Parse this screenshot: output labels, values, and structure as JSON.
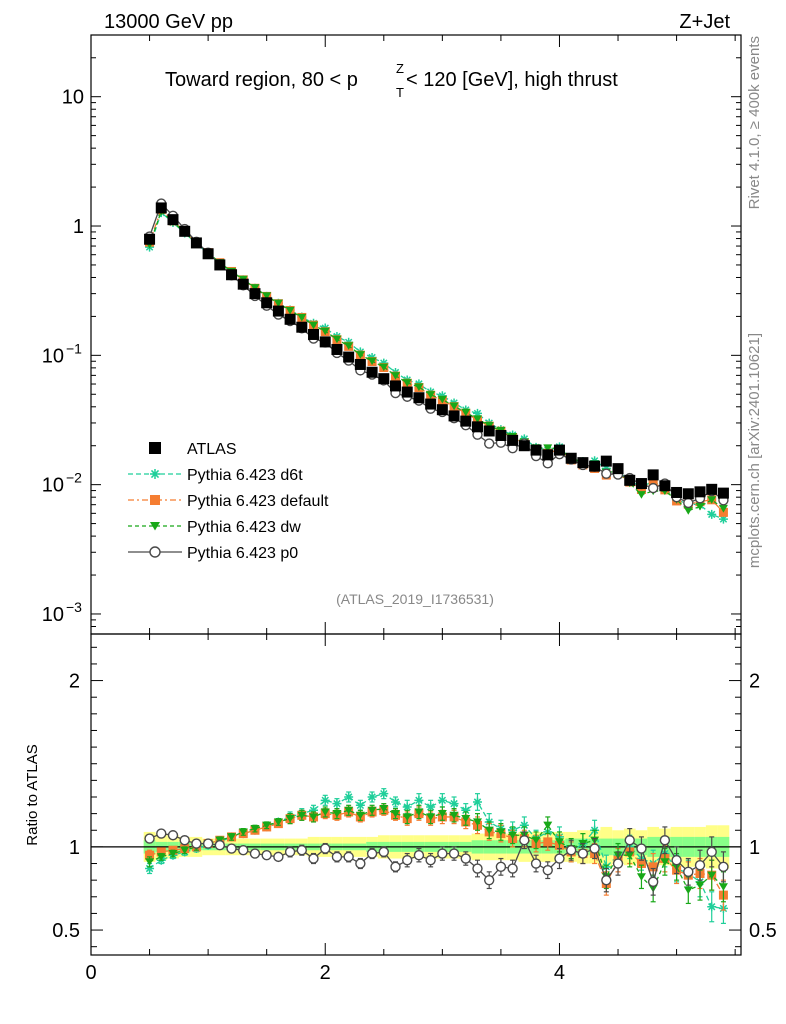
{
  "header": {
    "left": "13000 GeV pp",
    "right": "Z+Jet",
    "title_part1": "Toward region, 80 < p",
    "title_sup": "Z",
    "title_sub": "T",
    "title_part2": " < 120 [GeV], high thrust"
  },
  "side": {
    "top": "Rivet 4.1.0, ≥ 400k events",
    "bottom": "mcplots.cern.ch [arXiv:2401.10621]"
  },
  "analysis_id": "(ATLAS_2019_I1736531)",
  "ratio_ylabel": "Ratio to ATLAS",
  "colors": {
    "atlas": "#000000",
    "d6t": "#1fcf9a",
    "default": "#f57d31",
    "dw": "#18a818",
    "p0": "#4a4a4a",
    "band_yellow": "#ffff88",
    "band_green": "#88ff88"
  },
  "chart_data": {
    "type": "scatter",
    "xlim": [
      0,
      5.55
    ],
    "main": {
      "yscale": "log",
      "ylim": [
        0.0007,
        30
      ],
      "yticks": [
        {
          "value": 10,
          "base": "10",
          "exp": ""
        },
        {
          "value": 1,
          "base": "1",
          "exp": ""
        },
        {
          "value": 0.1,
          "base": "10",
          "exp": "−1"
        },
        {
          "value": 0.01,
          "base": "10",
          "exp": "−2"
        },
        {
          "value": 0.001,
          "base": "10",
          "exp": "−3"
        }
      ]
    },
    "ratio": {
      "ylim": [
        0.35,
        2.28
      ],
      "yticks": [
        0.5,
        1,
        2
      ],
      "ytick_labels": [
        "0.5",
        "1",
        "2"
      ]
    },
    "xticks": [
      0,
      2,
      4
    ],
    "xtick_labels": [
      "0",
      "2",
      "4"
    ],
    "x": [
      0.5,
      0.6,
      0.7,
      0.8,
      0.9,
      1.0,
      1.1,
      1.2,
      1.3,
      1.4,
      1.5,
      1.6,
      1.7,
      1.8,
      1.9,
      2.0,
      2.1,
      2.2,
      2.3,
      2.4,
      2.5,
      2.6,
      2.7,
      2.8,
      2.9,
      3.0,
      3.1,
      3.2,
      3.3,
      3.4,
      3.5,
      3.6,
      3.7,
      3.8,
      3.9,
      4.0,
      4.1,
      4.2,
      4.3,
      4.4,
      4.5,
      4.6,
      4.7,
      4.8,
      4.9,
      5.0,
      5.1,
      5.2,
      5.3,
      5.4
    ],
    "atlas_values": [
      0.79,
      1.38,
      1.12,
      0.91,
      0.74,
      0.61,
      0.5,
      0.42,
      0.355,
      0.3,
      0.255,
      0.22,
      0.19,
      0.165,
      0.145,
      0.127,
      0.111,
      0.097,
      0.085,
      0.074,
      0.066,
      0.058,
      0.052,
      0.047,
      0.042,
      0.038,
      0.034,
      0.031,
      0.028,
      0.026,
      0.024,
      0.022,
      0.02,
      0.0185,
      0.017,
      0.0185,
      0.016,
      0.0148,
      0.0139,
      0.0152,
      0.0133,
      0.0108,
      0.0102,
      0.0119,
      0.0098,
      0.0087,
      0.0085,
      0.0088,
      0.0092,
      0.0086
    ],
    "band_total": [
      0.09,
      0.08,
      0.07,
      0.06,
      0.06,
      0.05,
      0.05,
      0.05,
      0.05,
      0.05,
      0.05,
      0.05,
      0.05,
      0.05,
      0.06,
      0.06,
      0.06,
      0.06,
      0.06,
      0.06,
      0.07,
      0.07,
      0.07,
      0.07,
      0.07,
      0.07,
      0.07,
      0.07,
      0.08,
      0.08,
      0.08,
      0.08,
      0.09,
      0.09,
      0.09,
      0.09,
      0.09,
      0.1,
      0.1,
      0.12,
      0.1,
      0.11,
      0.1,
      0.12,
      0.11,
      0.12,
      0.12,
      0.12,
      0.13,
      0.13
    ],
    "band_stat": [
      0.04,
      0.03,
      0.03,
      0.03,
      0.02,
      0.02,
      0.02,
      0.02,
      0.02,
      0.02,
      0.02,
      0.02,
      0.02,
      0.02,
      0.02,
      0.02,
      0.02,
      0.02,
      0.02,
      0.03,
      0.03,
      0.03,
      0.03,
      0.03,
      0.03,
      0.03,
      0.03,
      0.03,
      0.04,
      0.04,
      0.04,
      0.04,
      0.04,
      0.04,
      0.04,
      0.04,
      0.05,
      0.05,
      0.05,
      0.05,
      0.05,
      0.05,
      0.05,
      0.06,
      0.06,
      0.06,
      0.06,
      0.06,
      0.06,
      0.06
    ],
    "series": [
      {
        "name": "Pythia 6.423 d6t",
        "key": "d6t",
        "marker": "star",
        "dash": "5,3",
        "ratio": [
          0.87,
          0.92,
          0.95,
          0.97,
          0.99,
          1.01,
          1.03,
          1.06,
          1.08,
          1.1,
          1.12,
          1.15,
          1.18,
          1.2,
          1.22,
          1.28,
          1.26,
          1.3,
          1.25,
          1.3,
          1.32,
          1.27,
          1.24,
          1.28,
          1.24,
          1.28,
          1.26,
          1.22,
          1.27,
          1.15,
          1.11,
          1.1,
          1.13,
          1.05,
          1.09,
          1.06,
          0.97,
          1.02,
          1.1,
          0.88,
          0.95,
          1.0,
          0.93,
          0.9,
          0.96,
          0.87,
          0.84,
          0.79,
          0.64,
          0.63
        ],
        "err": [
          0.03,
          0.02,
          0.02,
          0.02,
          0.02,
          0.02,
          0.02,
          0.02,
          0.02,
          0.02,
          0.02,
          0.02,
          0.03,
          0.03,
          0.03,
          0.03,
          0.03,
          0.03,
          0.03,
          0.03,
          0.03,
          0.03,
          0.04,
          0.04,
          0.04,
          0.04,
          0.04,
          0.04,
          0.05,
          0.05,
          0.05,
          0.05,
          0.05,
          0.05,
          0.05,
          0.06,
          0.06,
          0.06,
          0.06,
          0.07,
          0.07,
          0.07,
          0.07,
          0.08,
          0.08,
          0.08,
          0.08,
          0.09,
          0.09,
          0.09
        ]
      },
      {
        "name": "Pythia 6.423 default",
        "key": "default",
        "marker": "square",
        "dash": "6,3,2,3",
        "ratio": [
          0.95,
          0.97,
          0.98,
          0.99,
          1.0,
          1.02,
          1.04,
          1.06,
          1.08,
          1.1,
          1.12,
          1.14,
          1.17,
          1.19,
          1.18,
          1.2,
          1.19,
          1.21,
          1.18,
          1.21,
          1.22,
          1.19,
          1.17,
          1.2,
          1.17,
          1.18,
          1.18,
          1.15,
          1.13,
          1.09,
          1.08,
          1.05,
          1.05,
          1.02,
          1.03,
          1.01,
          0.97,
          0.96,
          0.96,
          0.78,
          0.92,
          0.97,
          0.9,
          0.88,
          0.93,
          0.86,
          0.83,
          0.84,
          0.83,
          0.71
        ],
        "err": [
          0.03,
          0.02,
          0.02,
          0.02,
          0.02,
          0.02,
          0.02,
          0.02,
          0.02,
          0.02,
          0.02,
          0.02,
          0.03,
          0.03,
          0.03,
          0.03,
          0.03,
          0.03,
          0.03,
          0.03,
          0.03,
          0.03,
          0.04,
          0.04,
          0.04,
          0.04,
          0.04,
          0.04,
          0.05,
          0.05,
          0.05,
          0.05,
          0.05,
          0.05,
          0.05,
          0.06,
          0.06,
          0.06,
          0.06,
          0.07,
          0.07,
          0.07,
          0.07,
          0.08,
          0.08,
          0.08,
          0.08,
          0.09,
          0.09,
          0.09
        ]
      },
      {
        "name": "Pythia 6.423 dw",
        "key": "dw",
        "marker": "tridown",
        "dash": "4,3",
        "ratio": [
          0.91,
          0.94,
          0.96,
          0.98,
          1.0,
          1.02,
          1.04,
          1.06,
          1.09,
          1.11,
          1.13,
          1.15,
          1.17,
          1.19,
          1.18,
          1.21,
          1.2,
          1.22,
          1.19,
          1.22,
          1.23,
          1.2,
          1.18,
          1.21,
          1.18,
          1.2,
          1.19,
          1.17,
          1.15,
          1.1,
          1.09,
          1.07,
          1.07,
          1.04,
          1.13,
          1.03,
          0.99,
          1.02,
          1.04,
          0.82,
          0.95,
          0.95,
          0.82,
          0.75,
          0.91,
          0.88,
          0.74,
          0.77,
          0.83,
          0.76
        ],
        "err": [
          0.03,
          0.02,
          0.02,
          0.02,
          0.02,
          0.02,
          0.02,
          0.02,
          0.02,
          0.02,
          0.02,
          0.02,
          0.03,
          0.03,
          0.03,
          0.03,
          0.03,
          0.03,
          0.03,
          0.03,
          0.03,
          0.03,
          0.04,
          0.04,
          0.04,
          0.04,
          0.04,
          0.04,
          0.05,
          0.05,
          0.05,
          0.05,
          0.05,
          0.05,
          0.05,
          0.06,
          0.06,
          0.06,
          0.06,
          0.07,
          0.07,
          0.07,
          0.07,
          0.08,
          0.08,
          0.08,
          0.08,
          0.09,
          0.09,
          0.09
        ]
      },
      {
        "name": "Pythia 6.423 p0",
        "key": "p0",
        "marker": "circle",
        "dash": "",
        "ratio": [
          1.05,
          1.08,
          1.07,
          1.04,
          1.02,
          1.02,
          1.01,
          0.99,
          0.98,
          0.96,
          0.95,
          0.94,
          0.97,
          0.98,
          0.93,
          0.99,
          0.94,
          0.94,
          0.9,
          0.96,
          0.97,
          0.88,
          0.92,
          0.95,
          0.92,
          0.96,
          0.96,
          0.93,
          0.87,
          0.8,
          0.88,
          0.87,
          1.04,
          0.9,
          0.86,
          0.93,
          0.98,
          0.96,
          0.99,
          0.8,
          0.9,
          1.04,
          0.99,
          0.79,
          1.04,
          0.92,
          0.85,
          0.89,
          0.97,
          0.88
        ],
        "err": [
          0.02,
          0.02,
          0.02,
          0.02,
          0.02,
          0.02,
          0.02,
          0.02,
          0.02,
          0.02,
          0.02,
          0.02,
          0.03,
          0.03,
          0.03,
          0.03,
          0.03,
          0.03,
          0.03,
          0.03,
          0.03,
          0.03,
          0.04,
          0.04,
          0.04,
          0.04,
          0.04,
          0.04,
          0.05,
          0.05,
          0.05,
          0.05,
          0.05,
          0.05,
          0.05,
          0.06,
          0.06,
          0.06,
          0.06,
          0.07,
          0.07,
          0.07,
          0.07,
          0.08,
          0.08,
          0.08,
          0.08,
          0.09,
          0.09,
          0.09
        ]
      }
    ],
    "legend": [
      {
        "label": "ATLAS",
        "key": "atlas",
        "marker": "square"
      },
      {
        "label": "Pythia 6.423 d6t",
        "key": "d6t",
        "marker": "star"
      },
      {
        "label": "Pythia 6.423 default",
        "key": "default",
        "marker": "square"
      },
      {
        "label": "Pythia 6.423 dw",
        "key": "dw",
        "marker": "tridown"
      },
      {
        "label": "Pythia 6.423 p0",
        "key": "p0",
        "marker": "circle"
      }
    ],
    "legend_position": "lower-left"
  }
}
